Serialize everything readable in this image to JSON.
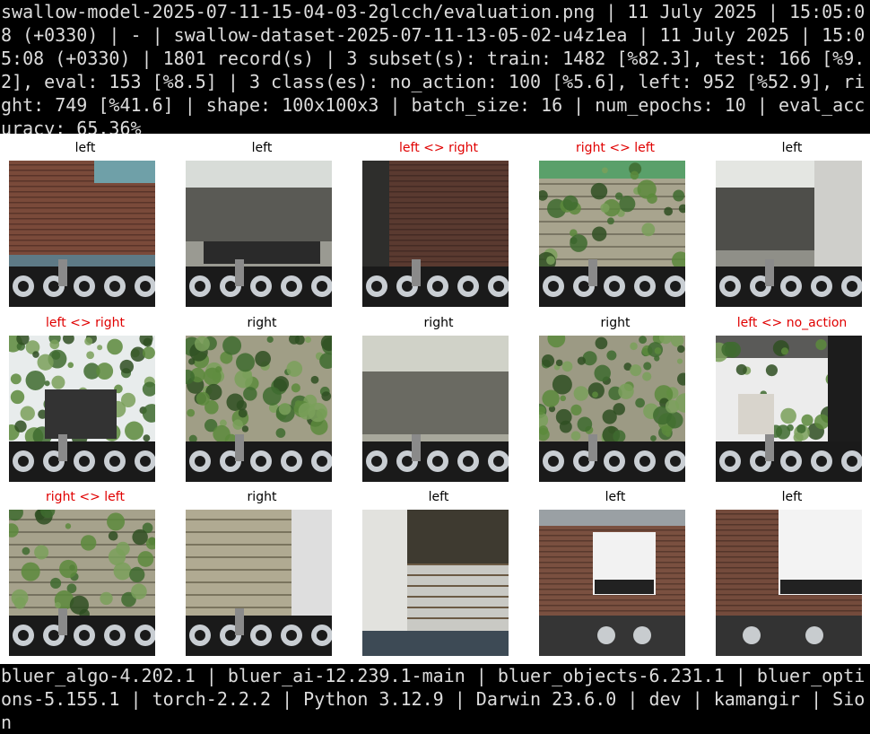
{
  "header": {
    "text": "swallow-model-2025-07-11-15-04-03-2glcch/evaluation.png | 11 July 2025 | 15:05:08 (+0330) | - | swallow-dataset-2025-07-11-13-05-02-u4z1ea | 11 July 2025 | 15:05:08 (+0330) | 1801 record(s) | 3 subset(s): train: 1482 [%82.3], test: 166 [%9.2], eval: 153 [%8.5] | 3 class(es): no_action: 100 [%5.6], left: 952 [%52.9], right: 749 [%41.6] | shape: 100x100x3 | batch_size: 16 | num_epochs: 10 | eval_accuracy: 65.36%"
  },
  "footer": {
    "text": "bluer_algo-4.202.1 | bluer_ai-12.239.1-main | bluer_objects-6.231.1 | bluer_options-5.155.1 | torch-2.2.2 | Python 3.12.9 | Darwin 23.6.0 | dev | kamangir | Sion"
  },
  "colors": {
    "correct_label": "#000000",
    "wrong_label": "#e00000"
  },
  "samples": [
    {
      "label": "left",
      "mismatch": false,
      "scene": "brick-wall"
    },
    {
      "label": "left",
      "mismatch": false,
      "scene": "garage-ceiling"
    },
    {
      "label": "left <> right",
      "mismatch": true,
      "scene": "dark-brick"
    },
    {
      "label": "right <> left",
      "mismatch": true,
      "scene": "plant-wall"
    },
    {
      "label": "left",
      "mismatch": false,
      "scene": "garage-bright"
    },
    {
      "label": "left <> right",
      "mismatch": true,
      "scene": "garden-view"
    },
    {
      "label": "right",
      "mismatch": false,
      "scene": "leafy-wall"
    },
    {
      "label": "right",
      "mismatch": false,
      "scene": "garage-dim"
    },
    {
      "label": "right",
      "mismatch": false,
      "scene": "leafy-wall-2"
    },
    {
      "label": "left <> no_action",
      "mismatch": true,
      "scene": "garage-garden"
    },
    {
      "label": "right <> left",
      "mismatch": true,
      "scene": "plant-wall-2"
    },
    {
      "label": "right",
      "mismatch": false,
      "scene": "wall-door"
    },
    {
      "label": "left",
      "mismatch": false,
      "scene": "fence-corner"
    },
    {
      "label": "left",
      "mismatch": false,
      "scene": "white-car"
    },
    {
      "label": "left",
      "mismatch": false,
      "scene": "white-car-2"
    }
  ]
}
